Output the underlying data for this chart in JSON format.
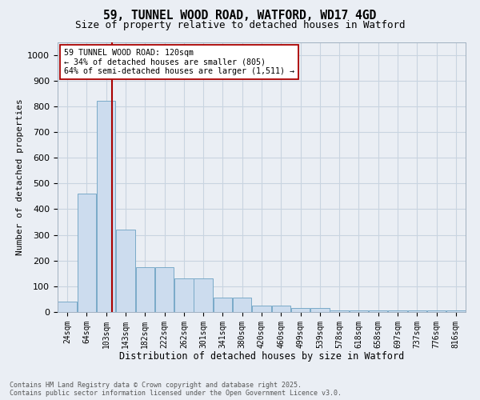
{
  "title_line1": "59, TUNNEL WOOD ROAD, WATFORD, WD17 4GD",
  "title_line2": "Size of property relative to detached houses in Watford",
  "xlabel": "Distribution of detached houses by size in Watford",
  "ylabel": "Number of detached properties",
  "bin_labels": [
    "24sqm",
    "64sqm",
    "103sqm",
    "143sqm",
    "182sqm",
    "222sqm",
    "262sqm",
    "301sqm",
    "341sqm",
    "380sqm",
    "420sqm",
    "460sqm",
    "499sqm",
    "539sqm",
    "578sqm",
    "618sqm",
    "658sqm",
    "697sqm",
    "737sqm",
    "776sqm",
    "816sqm"
  ],
  "bar_heights": [
    40,
    460,
    820,
    320,
    175,
    175,
    130,
    130,
    57,
    57,
    25,
    25,
    15,
    15,
    5,
    5,
    5,
    5,
    5,
    5,
    5
  ],
  "bar_color": "#ccdcee",
  "bar_edge_color": "#7aaac8",
  "grid_color": "#c8d4e0",
  "background_color": "#eaeef4",
  "annotation_line1": "59 TUNNEL WOOD ROAD: 120sqm",
  "annotation_line2": "← 34% of detached houses are smaller (805)",
  "annotation_line3": "64% of semi-detached houses are larger (1,511) →",
  "vline_color": "#aa0000",
  "vline_x": 2.3,
  "annotation_box_facecolor": "#ffffff",
  "annotation_box_edgecolor": "#aa0000",
  "ylim": [
    0,
    1050
  ],
  "yticks": [
    0,
    100,
    200,
    300,
    400,
    500,
    600,
    700,
    800,
    900,
    1000
  ],
  "footer_line1": "Contains HM Land Registry data © Crown copyright and database right 2025.",
  "footer_line2": "Contains public sector information licensed under the Open Government Licence v3.0."
}
